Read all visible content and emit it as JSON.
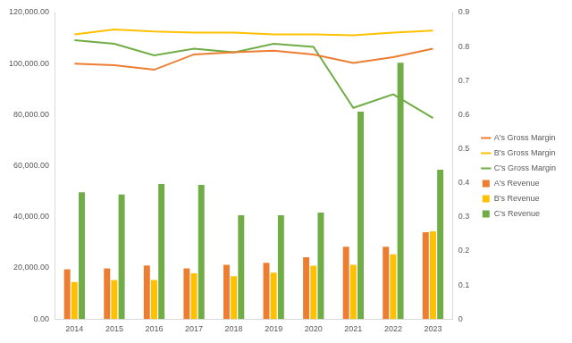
{
  "chart_data": {
    "type": "bar",
    "categories": [
      "2014",
      "2015",
      "2016",
      "2017",
      "2018",
      "2019",
      "2020",
      "2021",
      "2022",
      "2023"
    ],
    "series": [
      {
        "name": "A's Revenue",
        "type": "bar",
        "color": "#ED7D31",
        "values": [
          19500,
          19800,
          21000,
          19800,
          21200,
          22000,
          24200,
          28300,
          28300,
          34000
        ]
      },
      {
        "name": "B's Revenue",
        "type": "bar",
        "color": "#FFC000",
        "values": [
          14500,
          15300,
          15300,
          17900,
          16800,
          18200,
          20900,
          21200,
          25300,
          34300
        ]
      },
      {
        "name": "C's Revenue",
        "type": "bar",
        "color": "#70AD47",
        "values": [
          49600,
          48800,
          52900,
          52500,
          40600,
          40600,
          41700,
          81200,
          100300,
          58500
        ]
      },
      {
        "name": "A's Gross Margin",
        "type": "line",
        "axis": "y2",
        "color": "#ED7D31",
        "values": [
          0.75,
          0.745,
          0.732,
          0.777,
          0.783,
          0.788,
          0.777,
          0.752,
          0.769,
          0.794
        ]
      },
      {
        "name": "B's Gross Margin",
        "type": "line",
        "axis": "y2",
        "color": "#FFC000",
        "values": [
          0.836,
          0.85,
          0.844,
          0.841,
          0.841,
          0.836,
          0.836,
          0.833,
          0.841,
          0.847
        ]
      },
      {
        "name": "C's Gross Margin",
        "type": "line",
        "axis": "y2",
        "color": "#70AD47",
        "values": [
          0.819,
          0.808,
          0.774,
          0.794,
          0.783,
          0.808,
          0.799,
          0.62,
          0.66,
          0.59
        ]
      }
    ],
    "ylim": [
      0,
      120000
    ],
    "yticks": [
      {
        "value": 0,
        "label": "0.00"
      },
      {
        "value": 20000,
        "label": "20,000.00"
      },
      {
        "value": 40000,
        "label": "40,000.00"
      },
      {
        "value": 60000,
        "label": "60,000.00"
      },
      {
        "value": 80000,
        "label": "80,000.00"
      },
      {
        "value": 100000,
        "label": "100,000.00"
      },
      {
        "value": 120000,
        "label": "120,000.00"
      }
    ],
    "y2lim": [
      0,
      0.9
    ],
    "y2ticks": [
      0,
      0.1,
      0.2,
      0.3,
      0.4,
      0.5,
      0.6,
      0.7,
      0.8,
      0.9
    ],
    "grid": false,
    "legend": "right"
  }
}
